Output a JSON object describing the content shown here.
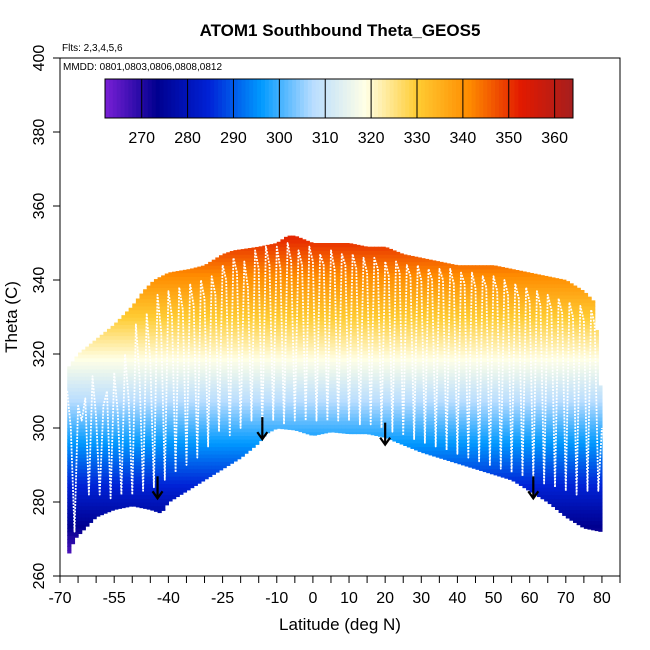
{
  "chart_data": {
    "type": "heatmap",
    "title": "ATOM1 Southbound Theta_GEOS5",
    "notes": [
      "Flts: 2,3,4,5,6",
      "MMDD: 0801,0803,0806,0808,0812"
    ],
    "xlabel": "Latitude (deg N)",
    "ylabel": "Theta (C)",
    "xlim": [
      -70,
      85
    ],
    "ylim": [
      260,
      400
    ],
    "x_ticks": [
      -70,
      -55,
      -40,
      -25,
      -10,
      0,
      10,
      20,
      30,
      40,
      50,
      60,
      70,
      80
    ],
    "x_minor_ticks": [
      -65,
      -60,
      -50,
      -45,
      -35,
      -30,
      -20,
      -15,
      -5,
      5,
      15,
      25,
      35,
      45,
      55,
      65,
      75,
      85
    ],
    "y_ticks": [
      260,
      280,
      300,
      320,
      340,
      360,
      380,
      400
    ],
    "colorbar": {
      "range": [
        262,
        364
      ],
      "ticks": [
        270,
        280,
        290,
        300,
        310,
        320,
        330,
        340,
        350,
        360
      ],
      "colors": [
        "#7a1fd6",
        "#00008f",
        "#0022d6",
        "#0099ff",
        "#b9ddff",
        "#ffffe6",
        "#ffcc33",
        "#ff8c00",
        "#e21a00",
        "#a61e1e"
      ]
    },
    "domain_bottom": {
      "lat": [
        -68,
        -66,
        -60,
        -55,
        -50,
        -45,
        -42,
        -40,
        -35,
        -30,
        -25,
        -20,
        -15,
        -13,
        -10,
        -5,
        0,
        5,
        10,
        15,
        20,
        25,
        30,
        40,
        50,
        55,
        60,
        65,
        70,
        75,
        80
      ],
      "theta": [
        265,
        270,
        276,
        278,
        279,
        278,
        277,
        280,
        283,
        286,
        289,
        292,
        296,
        298.5,
        300,
        299.5,
        298,
        299,
        298.5,
        298.5,
        297.5,
        295.5,
        293.5,
        290.5,
        287.5,
        286,
        283,
        280,
        276,
        273,
        272
      ]
    },
    "domain_top": {
      "lat": [
        -68,
        -65,
        -60,
        -55,
        -50,
        -47,
        -44,
        -40,
        -37,
        -34,
        -30,
        -25,
        -22,
        -15,
        -10,
        -7,
        -5,
        0,
        5,
        10,
        15,
        20,
        25,
        30,
        40,
        50,
        55,
        60,
        65,
        70,
        75,
        78,
        80
      ],
      "theta": [
        316,
        320,
        324,
        328,
        333,
        337,
        340,
        342,
        342.5,
        343,
        344,
        347,
        348,
        349,
        350,
        352,
        352,
        350,
        350,
        350,
        349,
        349,
        347,
        346,
        344,
        344,
        343,
        342,
        341,
        340,
        337,
        334,
        304
      ]
    },
    "arrows": [
      {
        "lat": -43,
        "theta": 281
      },
      {
        "lat": -14,
        "theta": 297
      },
      {
        "lat": 20,
        "theta": 295.5
      },
      {
        "lat": 61,
        "theta": 281
      }
    ],
    "flight_track": {
      "lat": [
        -68,
        -67,
        -66,
        -65,
        -64,
        -63,
        -62,
        -61,
        -60,
        -59,
        -58,
        -57,
        -56,
        -55,
        -54,
        -53,
        -52,
        -51,
        -50,
        -49,
        -48,
        -47,
        -46,
        -45,
        -44,
        -43,
        -42,
        -41,
        -40,
        -39,
        -38,
        -37,
        -36,
        -35,
        -34,
        -33,
        -32,
        -31,
        -30,
        -29,
        -28,
        -27,
        -26,
        -25,
        -24,
        -23,
        -22,
        -21,
        -20,
        -19,
        -18,
        -17,
        -16,
        -15,
        -14,
        -13,
        -12,
        -11,
        -10,
        -9,
        -8,
        -7,
        -6,
        -5,
        -4,
        -3,
        -2,
        -1,
        0,
        1,
        2,
        3,
        4,
        5,
        6,
        7,
        8,
        9,
        10,
        11,
        12,
        13,
        14,
        15,
        16,
        17,
        18,
        19,
        20,
        21,
        22,
        23,
        24,
        25,
        26,
        27,
        28,
        29,
        30,
        31,
        32,
        33,
        34,
        35,
        36,
        37,
        38,
        39,
        40,
        41,
        42,
        43,
        44,
        45,
        46,
        47,
        48,
        49,
        50,
        51,
        52,
        53,
        54,
        55,
        56,
        57,
        58,
        59,
        60,
        61,
        62,
        63,
        64,
        65,
        66,
        67,
        68,
        69,
        70,
        71,
        72,
        73,
        74,
        75,
        76,
        77,
        78,
        79,
        80
      ],
      "theta": [
        310,
        300,
        272,
        306,
        302,
        308,
        282,
        314,
        303,
        282,
        306,
        310,
        281,
        315,
        304,
        282,
        320,
        308,
        282,
        328,
        314,
        283,
        331,
        318,
        284,
        336,
        326,
        286,
        337,
        330,
        288,
        338,
        332,
        290,
        339,
        333,
        292,
        340,
        335,
        295,
        341,
        336,
        299,
        344,
        340,
        298,
        346,
        342,
        300,
        345,
        338,
        302,
        348,
        343,
        300,
        349,
        344,
        302,
        349,
        343,
        301,
        350,
        345,
        302,
        348,
        344,
        302,
        349,
        345,
        302,
        347,
        344,
        302,
        348,
        343,
        302,
        347,
        344,
        302,
        347,
        343,
        301,
        346,
        342,
        301,
        346,
        343,
        300,
        345,
        341,
        299,
        345,
        342,
        298,
        344,
        341,
        297,
        344,
        340,
        296,
        343,
        340,
        295,
        343,
        340,
        294,
        343,
        339,
        293,
        342,
        339,
        292,
        342,
        338,
        291,
        341,
        338,
        290,
        341,
        337,
        289,
        340,
        336,
        288,
        339,
        335,
        287,
        338,
        334,
        286,
        337,
        333,
        285,
        336,
        332,
        284,
        335,
        331,
        283,
        334,
        330,
        282,
        333,
        329,
        283,
        332,
        328,
        283,
        300
      ]
    }
  }
}
